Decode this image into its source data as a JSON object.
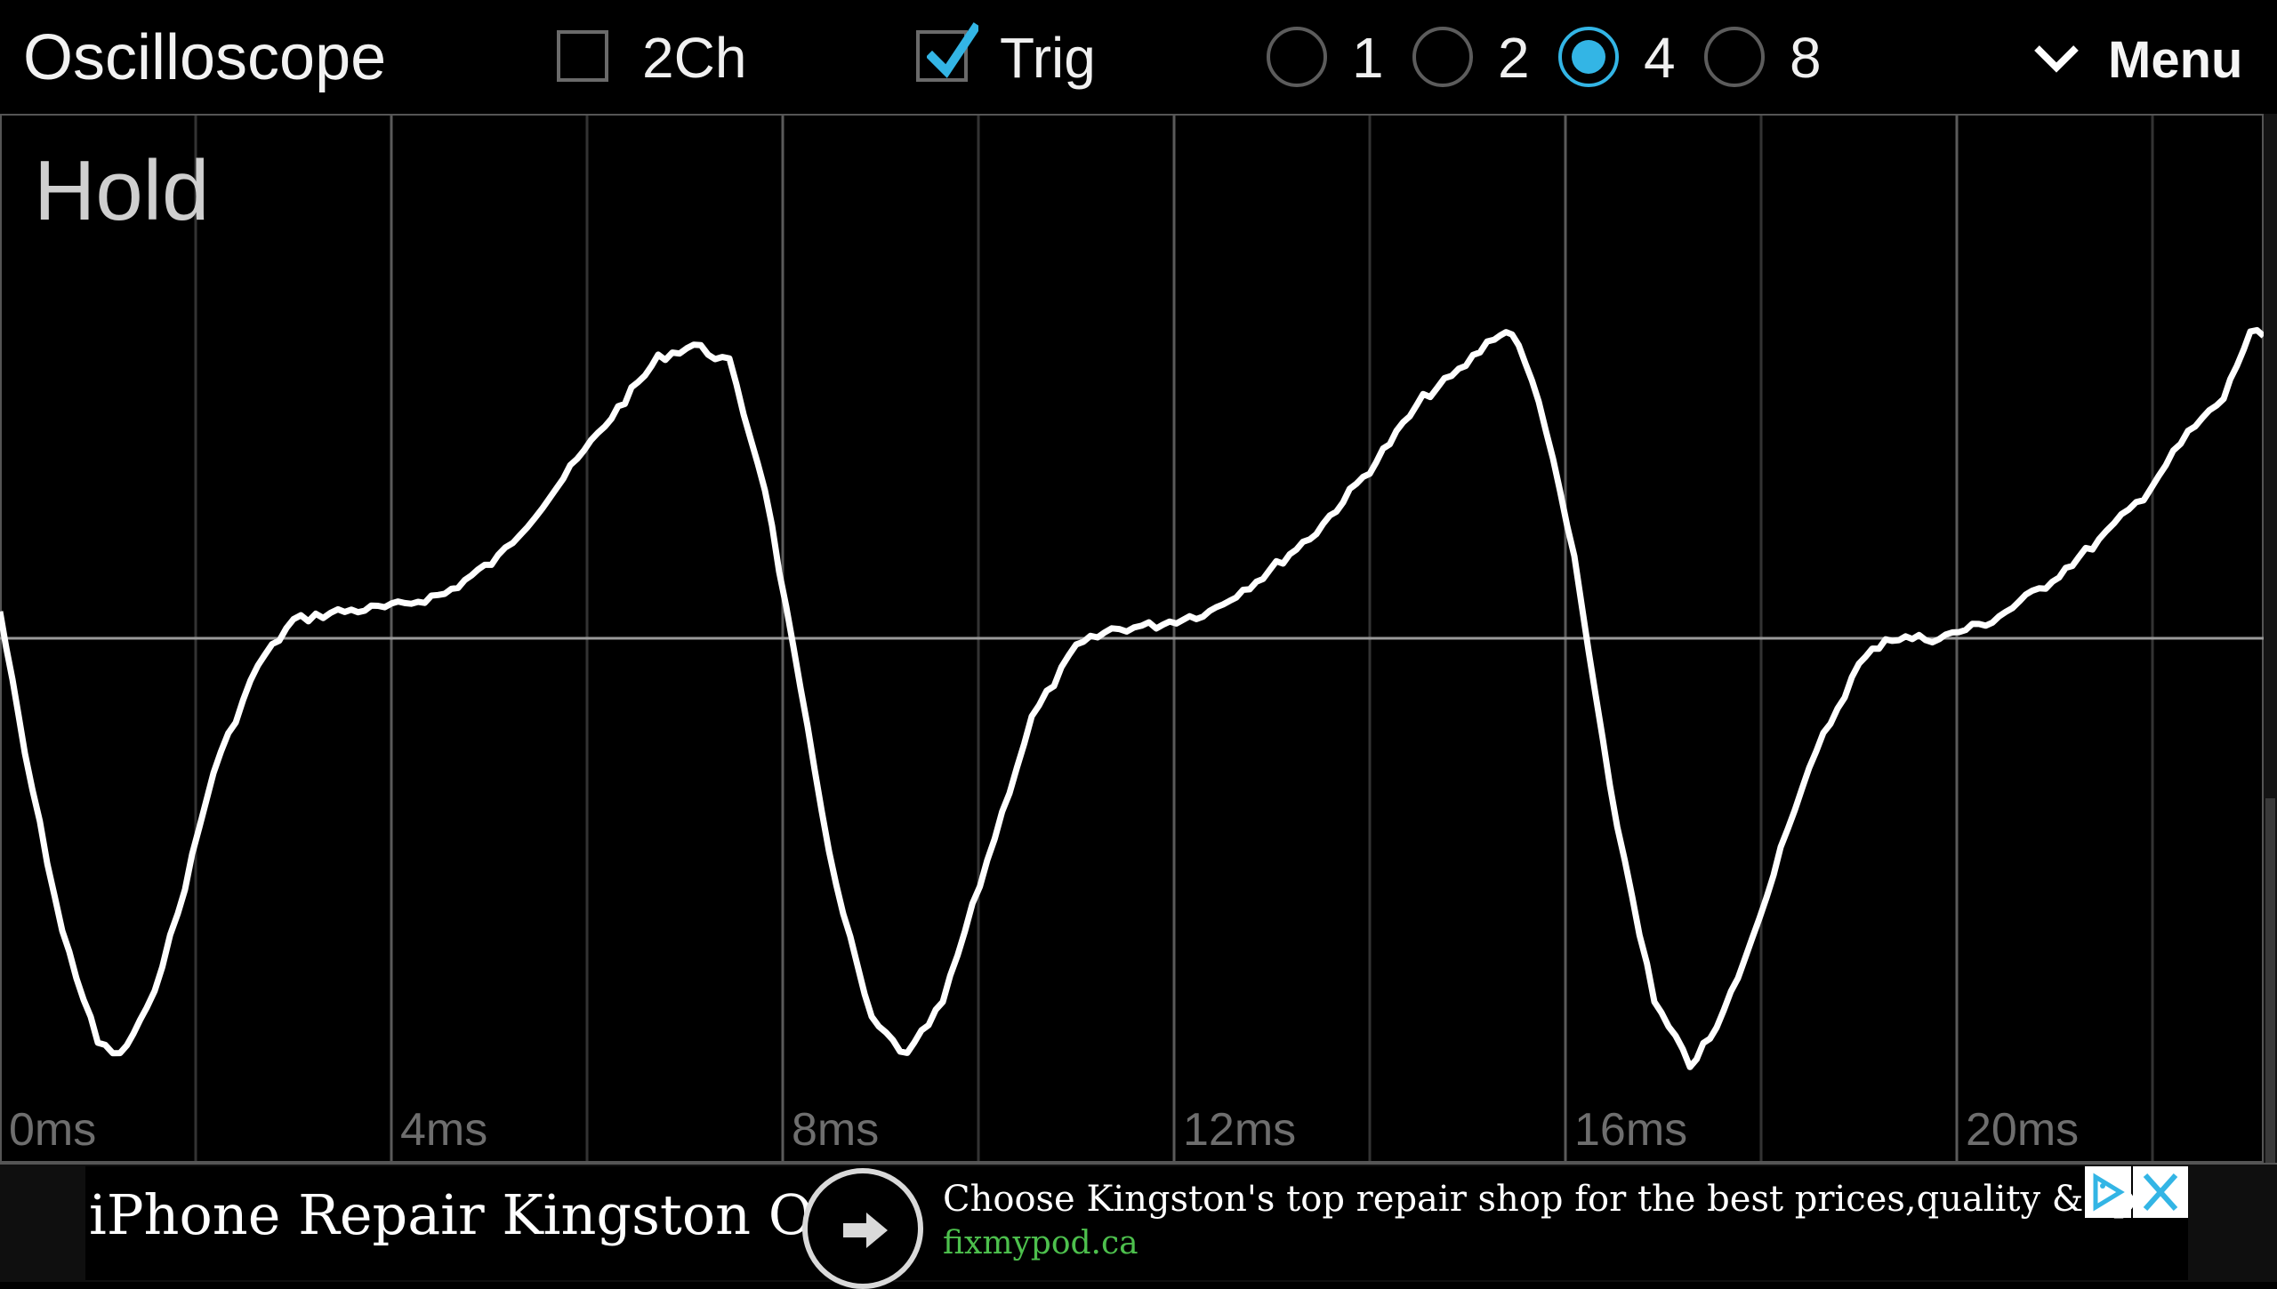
{
  "toolbar": {
    "title": "Oscilloscope",
    "two_channel": {
      "label": "2Ch",
      "checked": false
    },
    "trigger": {
      "label": "Trig",
      "checked": true
    },
    "zoom_options": [
      "1",
      "2",
      "4",
      "8"
    ],
    "zoom_selected": "4",
    "menu_label": "Menu"
  },
  "scope": {
    "status": "Hold",
    "time_labels": [
      "0ms",
      "4ms",
      "8ms",
      "12ms",
      "16ms",
      "20ms"
    ],
    "trace_color": "#ffffff",
    "grid_color": "#555555"
  },
  "ad": {
    "title": "iPhone Repair Kingston ON",
    "text": "Choose Kingston's top repair shop for the best prices,quality & speed",
    "url": "fixmypod.ca",
    "url_color": "#4dc04d"
  },
  "colors": {
    "accent": "#33b5e5",
    "background": "#000000"
  }
}
